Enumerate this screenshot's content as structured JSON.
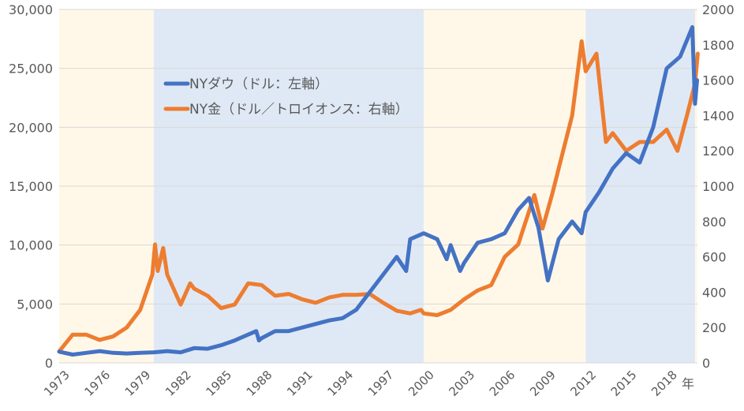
{
  "chart_data": {
    "type": "line",
    "title": "",
    "xlabel": "年",
    "x_ticks": [
      "1973",
      "1976",
      "1979",
      "1982",
      "1985",
      "1988",
      "1991",
      "1994",
      "1997",
      "2000",
      "2003",
      "2006",
      "2009",
      "2012",
      "2015",
      "2018"
    ],
    "xlim": [
      1973,
      2020.3
    ],
    "y_left": {
      "ylim": [
        0,
        30000
      ],
      "ticks": [
        "0",
        "5,000",
        "10,000",
        "15,000",
        "20,000",
        "25,000",
        "30,000"
      ]
    },
    "y_right": {
      "ylim": [
        0,
        2000
      ],
      "ticks": [
        "0",
        "200",
        "400",
        "600",
        "800",
        "1000",
        "1200",
        "1400",
        "1600",
        "1800",
        "2000"
      ]
    },
    "grid": true,
    "legend_placement": "upper-left-center",
    "background_bands": [
      {
        "from": 1973,
        "to": 1980,
        "color": "#fff8e8"
      },
      {
        "from": 1980,
        "to": 2000,
        "color": "#dfe9f5"
      },
      {
        "from": 2000,
        "to": 2012,
        "color": "#fff8e8"
      },
      {
        "from": 2012,
        "to": 2020.1,
        "color": "#dfe9f5"
      },
      {
        "from": 2020.1,
        "to": 2020.3,
        "color": "#fff8e8"
      }
    ],
    "series": [
      {
        "name": "NYダウ（ドル：左軸）",
        "axis": "left",
        "color": "#4472c4",
        "x": [
          1973,
          1974,
          1975,
          1976,
          1977,
          1978,
          1979,
          1980,
          1981,
          1982,
          1983,
          1984,
          1985,
          1986,
          1987.6,
          1987.8,
          1988,
          1989,
          1990,
          1991,
          1992,
          1993,
          1994,
          1995,
          1996,
          1997,
          1998,
          1998.7,
          1999,
          2000,
          2001,
          2001.7,
          2002,
          2002.7,
          2003,
          2004,
          2005,
          2006,
          2007,
          2007.8,
          2008.5,
          2009.2,
          2010,
          2011,
          2011.7,
          2012,
          2013,
          2014,
          2015,
          2016,
          2017,
          2018,
          2019,
          2019.9,
          2020.1,
          2020.25
        ],
        "values": [
          950,
          700,
          850,
          1000,
          850,
          800,
          850,
          900,
          1000,
          900,
          1250,
          1200,
          1500,
          1900,
          2700,
          1900,
          2100,
          2700,
          2700,
          3000,
          3300,
          3600,
          3800,
          4500,
          6000,
          7500,
          9000,
          7800,
          10500,
          11000,
          10500,
          8800,
          10000,
          7800,
          8500,
          10200,
          10500,
          11000,
          13000,
          14000,
          11500,
          7000,
          10500,
          12000,
          11000,
          12800,
          14500,
          16500,
          17800,
          17000,
          20000,
          25000,
          26000,
          28500,
          22000,
          24000
        ]
      },
      {
        "name": "NY金（ドル／トロイオンス：右軸）",
        "axis": "right",
        "color": "#ed7d31",
        "x": [
          1973,
          1974,
          1975,
          1976,
          1977,
          1978,
          1979,
          1979.9,
          1980.1,
          1980.3,
          1980.7,
          1981,
          1982,
          1982.7,
          1983,
          1984,
          1985,
          1986,
          1987,
          1988,
          1989,
          1990,
          1991,
          1992,
          1993,
          1994,
          1995,
          1996,
          1997,
          1998,
          1999,
          1999.8,
          2000,
          2001,
          2002,
          2003,
          2004,
          2005,
          2006,
          2007,
          2008.2,
          2008.8,
          2009.5,
          2010,
          2011,
          2011.7,
          2012,
          2012.8,
          2013.5,
          2014,
          2015,
          2016,
          2017,
          2018,
          2018.8,
          2019.5,
          2020.1,
          2020.3
        ],
        "values": [
          65,
          160,
          160,
          130,
          150,
          200,
          300,
          500,
          670,
          520,
          650,
          500,
          330,
          450,
          420,
          380,
          310,
          330,
          450,
          440,
          380,
          390,
          360,
          340,
          370,
          385,
          385,
          390,
          340,
          295,
          280,
          300,
          280,
          270,
          300,
          360,
          410,
          440,
          600,
          670,
          950,
          760,
          950,
          1100,
          1400,
          1820,
          1650,
          1750,
          1250,
          1300,
          1200,
          1250,
          1250,
          1320,
          1200,
          1400,
          1580,
          1750
        ]
      }
    ]
  }
}
